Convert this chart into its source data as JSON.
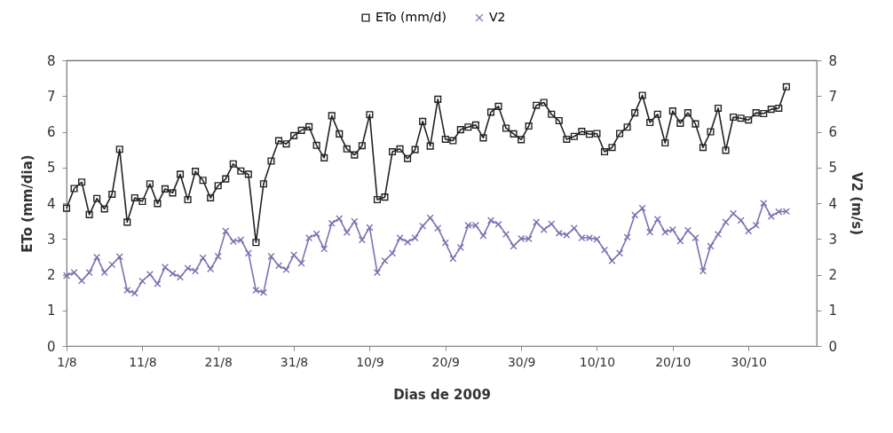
{
  "chart_data": {
    "type": "line",
    "xlabel": "Dias de 2009",
    "ylabel": "ETo (mm/dia)",
    "y2label": "V2 (m/s)",
    "x": [
      "--08-01",
      "--08-02",
      "--08-03",
      "--08-04",
      "--08-05",
      "--08-06",
      "--08-07",
      "--08-08",
      "--08-09",
      "--08-10",
      "--08-11",
      "--08-12",
      "--08-13",
      "--08-14",
      "--08-15",
      "--08-16",
      "--08-17",
      "--08-18",
      "--08-19",
      "--08-20",
      "--08-21",
      "--08-22",
      "--08-23",
      "--08-24",
      "--08-25",
      "--08-26",
      "--08-27",
      "--08-28",
      "--08-29",
      "--08-30",
      "--08-31",
      "--09-01",
      "--09-02",
      "--09-03",
      "--09-04",
      "--09-05",
      "--09-06",
      "--09-07",
      "--09-08",
      "--09-09",
      "--09-10",
      "--09-11",
      "--09-12",
      "--09-13",
      "--09-14",
      "--09-15",
      "--09-16",
      "--09-17",
      "--09-18",
      "--09-19",
      "--09-20",
      "--09-21",
      "--09-22",
      "--09-23",
      "--09-24",
      "--09-25",
      "--09-26",
      "--09-27",
      "--09-28",
      "--09-29",
      "--09-30",
      "--10-01",
      "--10-02",
      "--10-03",
      "--10-04",
      "--10-05",
      "--10-06",
      "--10-07",
      "--10-08",
      "--10-09",
      "--10-10",
      "--10-11",
      "--10-12",
      "--10-13",
      "--10-14",
      "--10-15",
      "--10-16",
      "--10-17",
      "--10-18",
      "--10-19",
      "--10-20",
      "--10-21",
      "--10-22",
      "--10-23",
      "--10-24",
      "--10-25",
      "--10-26",
      "--10-27",
      "--10-28",
      "--10-29",
      "--10-30",
      "--10-31",
      "--11-01",
      "--11-02",
      "--11-03",
      "--11-04"
    ],
    "series": [
      {
        "name": "ETo (mm/d)",
        "color": "#222222",
        "marker": "square",
        "values": [
          3.86,
          4.41,
          4.59,
          3.68,
          4.13,
          3.84,
          4.25,
          5.51,
          3.47,
          4.15,
          4.05,
          4.54,
          3.99,
          4.4,
          4.29,
          4.81,
          4.1,
          4.89,
          4.64,
          4.15,
          4.49,
          4.68,
          5.1,
          4.9,
          4.81,
          2.9,
          4.54,
          5.18,
          5.75,
          5.66,
          5.89,
          6.04,
          6.14,
          5.62,
          5.27,
          6.45,
          5.94,
          5.52,
          5.35,
          5.61,
          6.48,
          4.1,
          4.17,
          5.44,
          5.52,
          5.25,
          5.5,
          6.29,
          5.6,
          6.91,
          5.79,
          5.75,
          6.06,
          6.13,
          6.19,
          5.83,
          6.55,
          6.71,
          6.1,
          5.94,
          5.78,
          6.16,
          6.74,
          6.82,
          6.49,
          6.31,
          5.79,
          5.87,
          6.01,
          5.93,
          5.95,
          5.44,
          5.56,
          5.95,
          6.13,
          6.53,
          7.02,
          6.26,
          6.49,
          5.69,
          6.58,
          6.24,
          6.53,
          6.22,
          5.56,
          6.0,
          6.66,
          5.48,
          6.41,
          6.38,
          6.33,
          6.53,
          6.51,
          6.63,
          6.66,
          7.26
        ]
      },
      {
        "name": "V2",
        "color": "#7f6fb0",
        "marker": "cross",
        "axis": "y2",
        "values": [
          1.97,
          2.06,
          1.83,
          2.06,
          2.49,
          2.06,
          2.28,
          2.5,
          1.56,
          1.48,
          1.82,
          2.01,
          1.74,
          2.21,
          2.03,
          1.93,
          2.18,
          2.1,
          2.47,
          2.16,
          2.51,
          3.22,
          2.93,
          2.97,
          2.6,
          1.56,
          1.5,
          2.51,
          2.25,
          2.14,
          2.55,
          2.32,
          3.03,
          3.14,
          2.72,
          3.44,
          3.57,
          3.18,
          3.49,
          2.97,
          3.32,
          2.06,
          2.39,
          2.6,
          3.03,
          2.91,
          3.03,
          3.36,
          3.59,
          3.3,
          2.89,
          2.45,
          2.76,
          3.38,
          3.38,
          3.09,
          3.52,
          3.41,
          3.13,
          2.8,
          3.01,
          3.0,
          3.47,
          3.26,
          3.42,
          3.16,
          3.11,
          3.3,
          3.03,
          3.03,
          2.99,
          2.69,
          2.39,
          2.6,
          3.05,
          3.67,
          3.86,
          3.19,
          3.55,
          3.19,
          3.26,
          2.94,
          3.24,
          3.03,
          2.1,
          2.8,
          3.13,
          3.47,
          3.71,
          3.52,
          3.22,
          3.38,
          4.0,
          3.63,
          3.76,
          3.77
        ]
      }
    ],
    "xlim": [
      "--08-01",
      "--11-08"
    ],
    "xticks": [
      {
        "value": "--08-01",
        "label": "1/8"
      },
      {
        "value": "--08-11",
        "label": "11/8"
      },
      {
        "value": "--08-21",
        "label": "21/8"
      },
      {
        "value": "--08-31",
        "label": "31/8"
      },
      {
        "value": "--09-10",
        "label": "10/9"
      },
      {
        "value": "--09-20",
        "label": "20/9"
      },
      {
        "value": "--09-30",
        "label": "30/9"
      },
      {
        "value": "--10-10",
        "label": "10/10"
      },
      {
        "value": "--10-20",
        "label": "20/10"
      },
      {
        "value": "--10-30",
        "label": "30/10"
      }
    ],
    "ylim": [
      0,
      8
    ],
    "yticks": [
      0,
      1,
      2,
      3,
      4,
      5,
      6,
      7,
      8
    ],
    "y2lim": [
      0,
      8
    ],
    "y2ticks": [
      0,
      1,
      2,
      3,
      4,
      5,
      6,
      7,
      8
    ],
    "grid": false,
    "legend": "top"
  }
}
